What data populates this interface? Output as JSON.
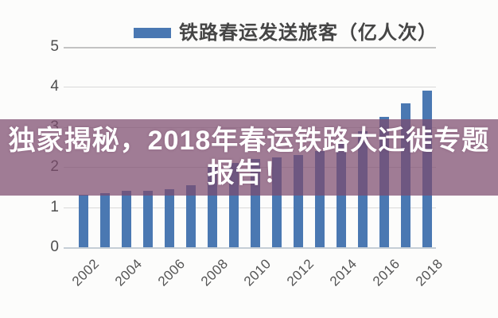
{
  "banner": {
    "line1": "独家揭秘，2018年春运铁路大迁徙专题",
    "line2": "报告！",
    "text_color": "#ffffff",
    "overlay_color": "rgba(125,75,110,0.72)"
  },
  "legend": {
    "label": "铁路春运发送旅客（亿人次）",
    "swatch_color": "#4a78b2"
  },
  "chart_data": {
    "type": "bar",
    "title": "铁路春运发送旅客（亿人次）",
    "categories": [
      "2002",
      "2003",
      "2004",
      "2005",
      "2006",
      "2007",
      "2008",
      "2009",
      "2010",
      "2011",
      "2012",
      "2013",
      "2014",
      "2015",
      "2016",
      "2017",
      "2018"
    ],
    "values": [
      1.3,
      1.35,
      1.4,
      1.4,
      1.45,
      1.55,
      2.0,
      2.1,
      2.2,
      2.25,
      2.3,
      2.4,
      2.6,
      2.9,
      3.25,
      3.6,
      3.9
    ],
    "x_tick_labels": [
      "2002",
      "2004",
      "2006",
      "2008",
      "2010",
      "2012",
      "2014",
      "2016",
      "2018"
    ],
    "y_ticks": [
      0,
      1,
      2,
      3,
      4,
      5
    ],
    "ylim": [
      0,
      5
    ],
    "xlabel": "",
    "ylabel": "",
    "grid": true,
    "legend_position": "top",
    "bar_color": "#4a78b2",
    "gridline_color": "#d9d9d9",
    "axis_label_color": "#4e4e4e"
  }
}
